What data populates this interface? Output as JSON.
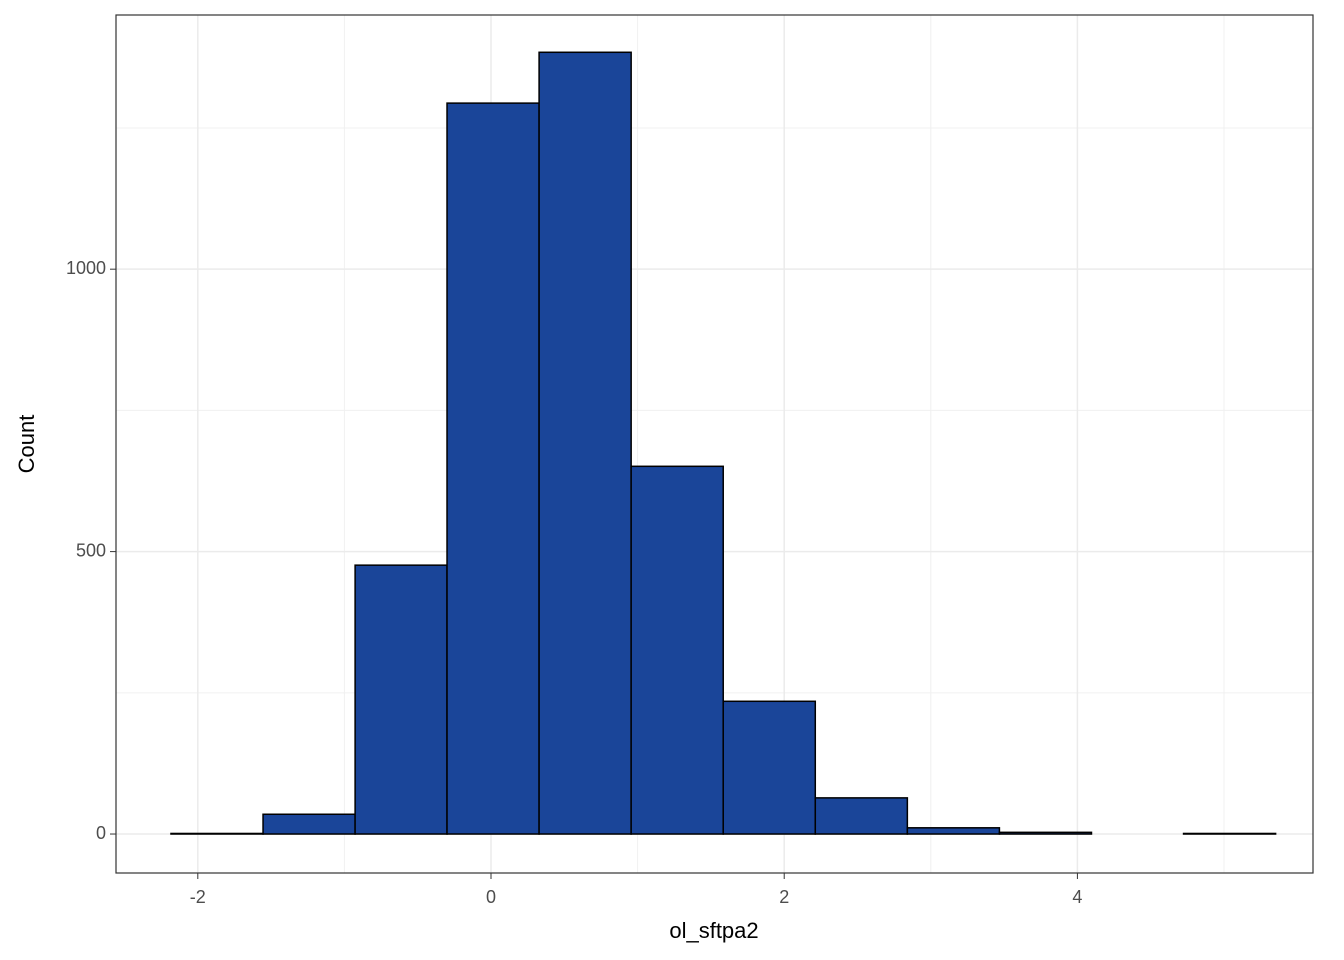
{
  "chart_data": {
    "type": "histogram",
    "x_label": "ol_sftpa2",
    "y_label": "Count",
    "bins": [
      -2.183,
      -1.555,
      -0.927,
      -0.3,
      0.328,
      0.956,
      1.584,
      2.212,
      2.84,
      3.468,
      4.096,
      4.724,
      5.352
    ],
    "values": [
      1,
      35,
      476,
      1294,
      1384,
      651,
      235,
      64,
      11,
      3,
      0,
      1
    ],
    "color": "#1a4599",
    "edge_color": "#000000",
    "xlim": [
      -2.558,
      5.607
    ],
    "ylim": [
      -69,
      1450
    ],
    "xticks": [
      -2,
      0,
      2,
      4
    ],
    "yticks": [
      0,
      500,
      1000
    ],
    "minor_xticks": [
      -1,
      1,
      3,
      5
    ],
    "minor_yticks": [
      250,
      750,
      1250
    ],
    "grid": true
  }
}
